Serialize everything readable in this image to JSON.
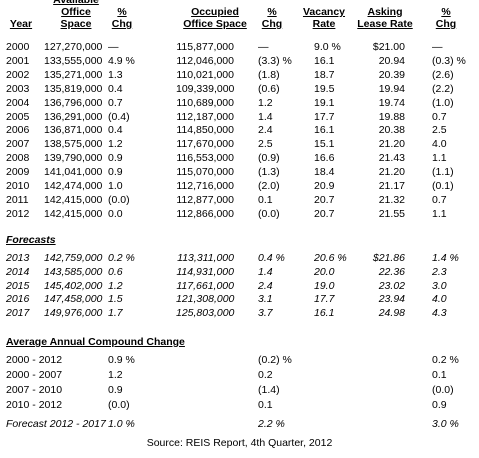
{
  "header": {
    "columns": [
      "Year",
      "Available Office Space",
      "% Chg",
      "Occupied Office Space",
      "% Chg",
      "Vacancy Rate",
      "Asking Lease Rate",
      "% Chg"
    ]
  },
  "history": {
    "rows": [
      [
        "2000",
        "127,270,000",
        "—",
        "115,877,000",
        "—",
        "9.0 %",
        "$21.00",
        "—"
      ],
      [
        "2001",
        "133,555,000",
        "4.9 %",
        "112,046,000",
        "(3.3) %",
        "16.1",
        "20.94",
        "(0.3) %"
      ],
      [
        "2002",
        "135,271,000",
        "1.3",
        "110,021,000",
        "(1.8)",
        "18.7",
        "20.39",
        "(2.6)"
      ],
      [
        "2003",
        "135,819,000",
        "0.4",
        "109,339,000",
        "(0.6)",
        "19.5",
        "19.94",
        "(2.2)"
      ],
      [
        "2004",
        "136,796,000",
        "0.7",
        "110,689,000",
        "1.2",
        "19.1",
        "19.74",
        "(1.0)"
      ],
      [
        "2005",
        "136,291,000",
        "(0.4)",
        "112,187,000",
        "1.4",
        "17.7",
        "19.88",
        "0.7"
      ],
      [
        "2006",
        "136,871,000",
        "0.4",
        "114,850,000",
        "2.4",
        "16.1",
        "20.38",
        "2.5"
      ],
      [
        "2007",
        "138,575,000",
        "1.2",
        "117,670,000",
        "2.5",
        "15.1",
        "21.20",
        "4.0"
      ],
      [
        "2008",
        "139,790,000",
        "0.9",
        "116,553,000",
        "(0.9)",
        "16.6",
        "21.43",
        "1.1"
      ],
      [
        "2009",
        "141,041,000",
        "0.9",
        "115,070,000",
        "(1.3)",
        "18.4",
        "21.20",
        "(1.1)"
      ],
      [
        "2010",
        "142,474,000",
        "1.0",
        "112,716,000",
        "(2.0)",
        "20.9",
        "21.17",
        "(0.1)"
      ],
      [
        "2011",
        "142,415,000",
        "(0.0)",
        "112,877,000",
        "0.1",
        "20.7",
        "21.32",
        "0.7"
      ],
      [
        "2012",
        "142,415,000",
        "0.0",
        "112,866,000",
        "(0.0)",
        "20.7",
        "21.55",
        "1.1"
      ]
    ]
  },
  "forecasts": {
    "title": "Forecasts",
    "rows": [
      [
        "2013",
        "142,759,000",
        "0.2 %",
        "113,311,000",
        "0.4 %",
        "20.6 %",
        "$21.86",
        "1.4 %"
      ],
      [
        "2014",
        "143,585,000",
        "0.6",
        "114,931,000",
        "1.4",
        "20.0",
        "22.36",
        "2.3"
      ],
      [
        "2015",
        "145,402,000",
        "1.2",
        "117,661,000",
        "2.4",
        "19.0",
        "23.02",
        "3.0"
      ],
      [
        "2016",
        "147,458,000",
        "1.5",
        "121,308,000",
        "3.1",
        "17.7",
        "23.94",
        "4.0"
      ],
      [
        "2017",
        "149,976,000",
        "1.7",
        "125,803,000",
        "3.7",
        "16.1",
        "24.98",
        "4.3"
      ]
    ]
  },
  "compound": {
    "title": "Average Annual Compound Change",
    "rows": [
      [
        "2000 - 2012",
        "0.9 %",
        "(0.2) %",
        "0.2 %"
      ],
      [
        "2000 - 2007",
        "1.2",
        "0.2",
        "0.1"
      ],
      [
        "2007 - 2010",
        "0.9",
        "(1.4)",
        "(0.0)"
      ],
      [
        "2010 - 2012",
        "(0.0)",
        "0.1",
        "0.9"
      ],
      [
        "Forecast 2012 - 2017",
        "1.0 %",
        "2.2 %",
        "3.0 %"
      ]
    ]
  },
  "source": "Source: REIS Report, 4th Quarter, 2012"
}
